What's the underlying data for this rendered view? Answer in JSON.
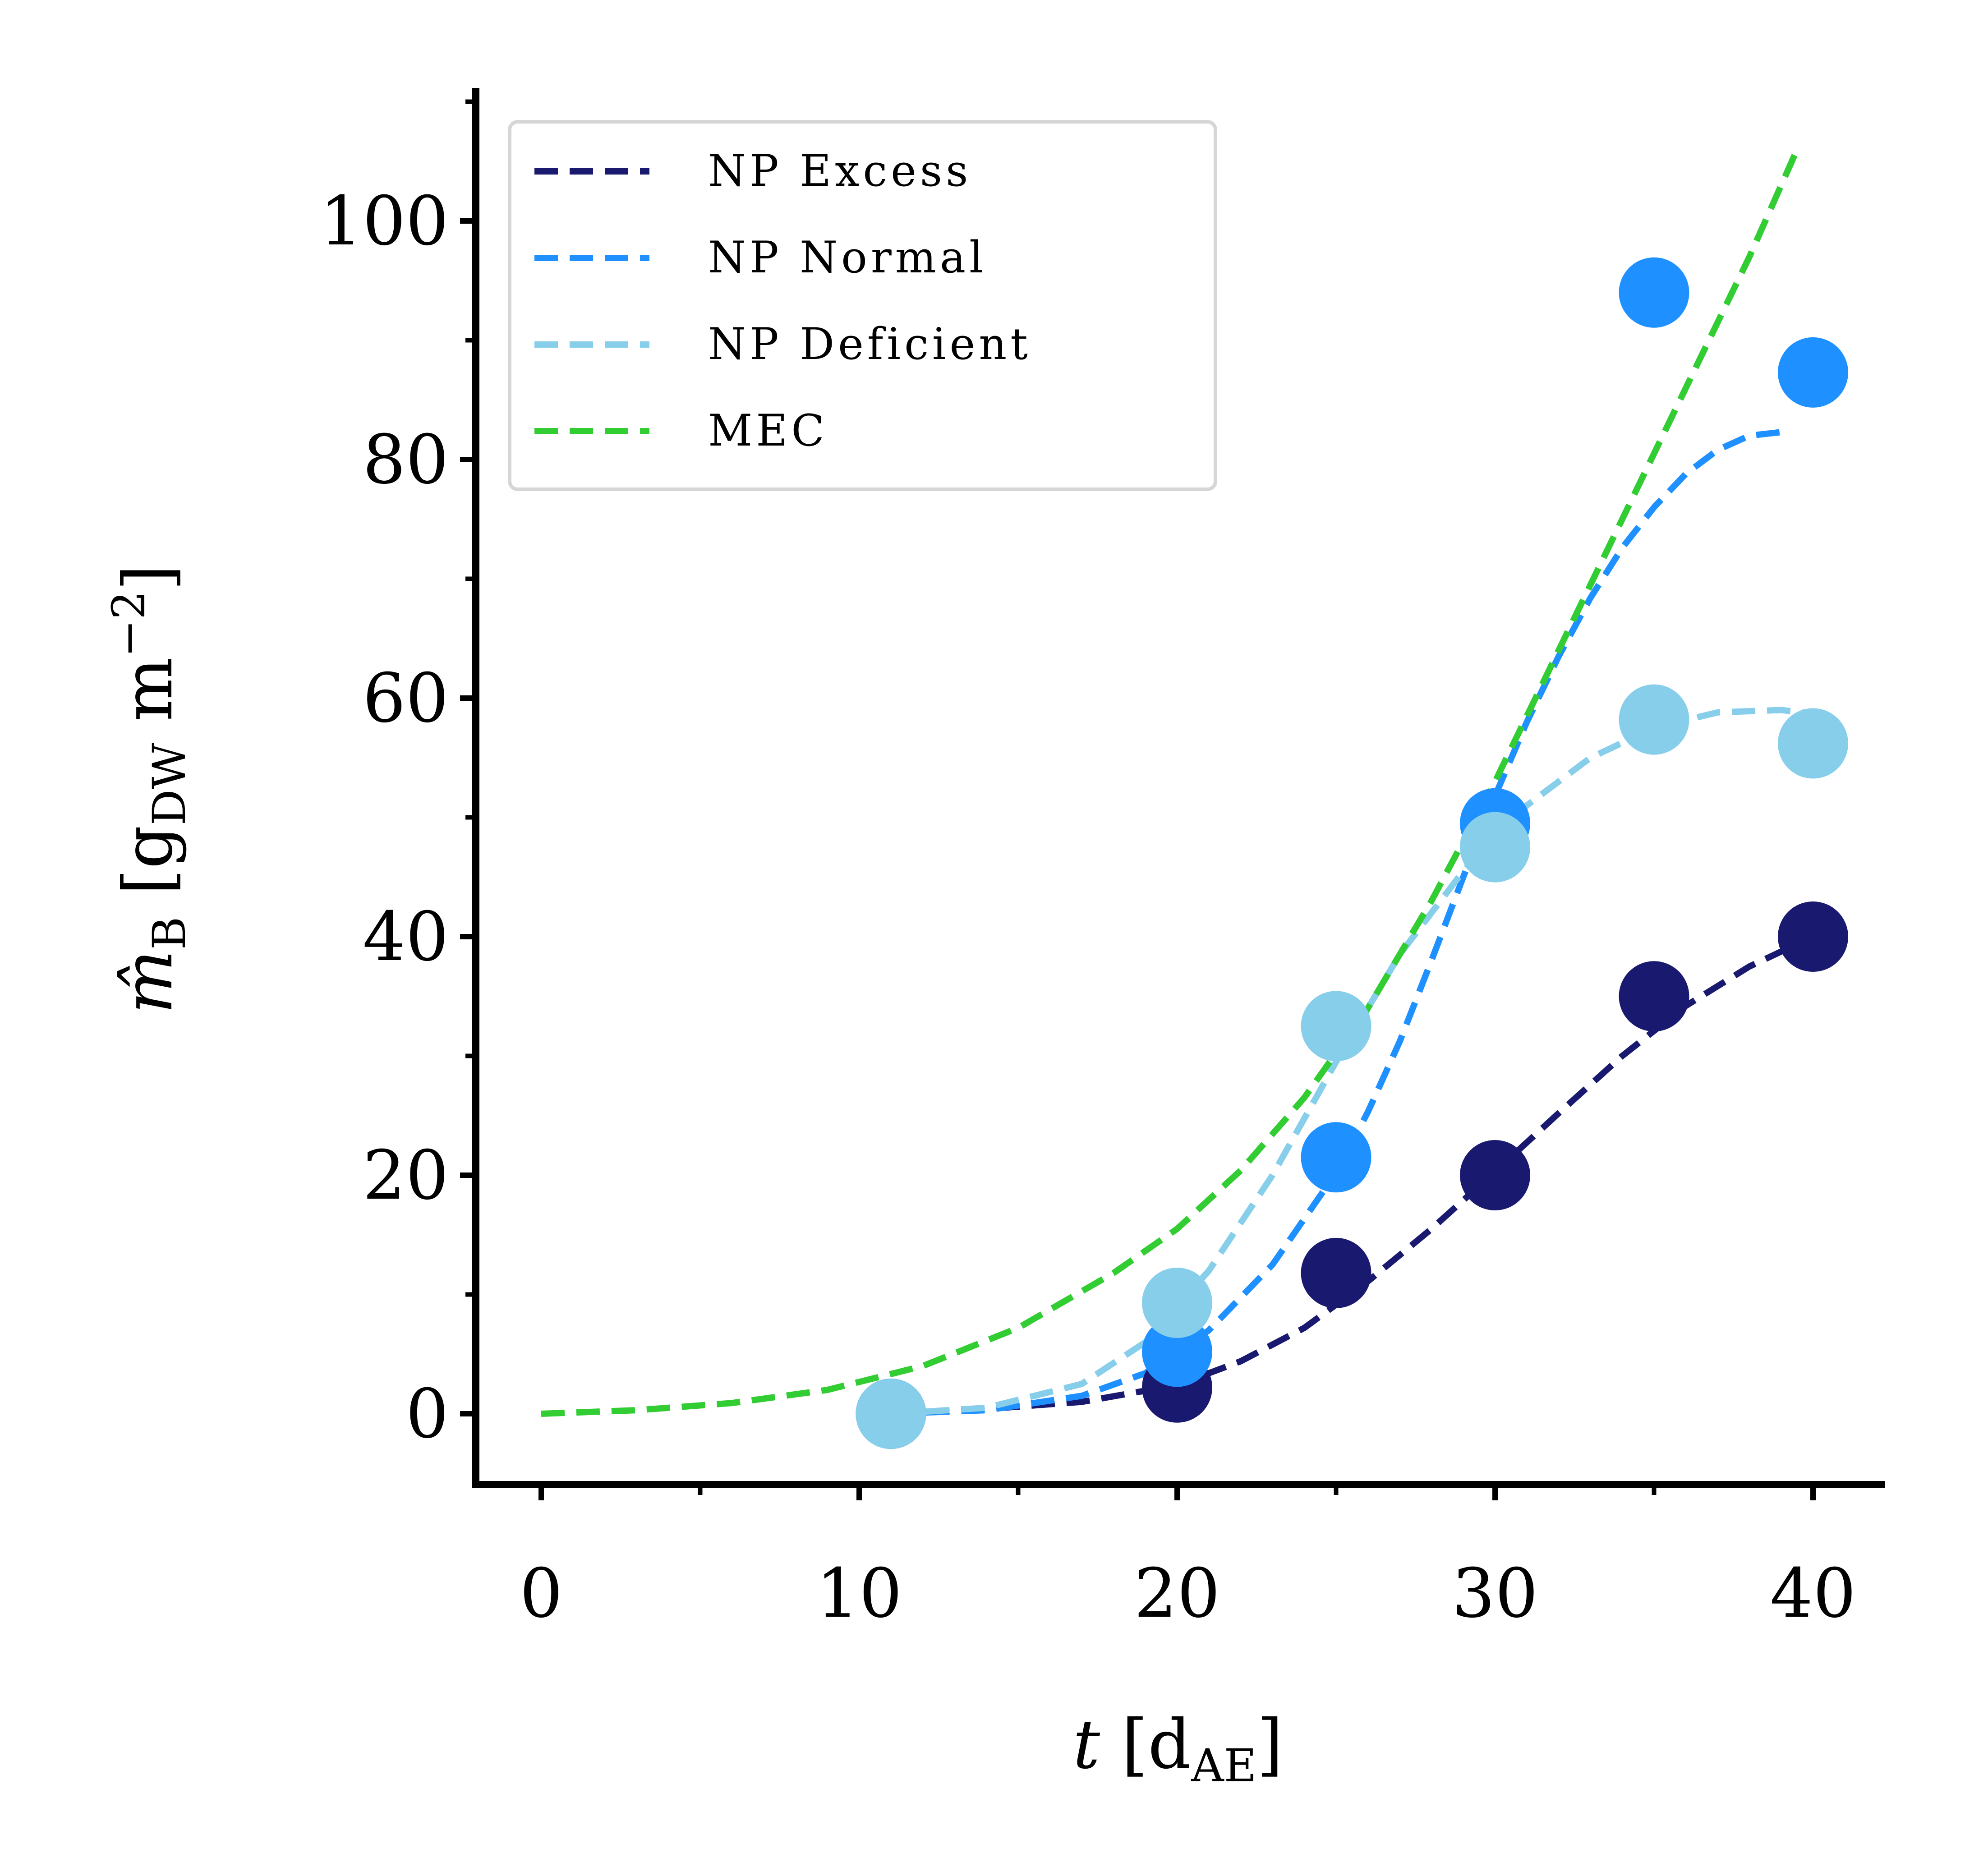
{
  "chart_data": {
    "type": "line",
    "xlabel": "t [dAE]",
    "xlabel_parts": {
      "var": "t",
      "open": " [d",
      "sub": "AE",
      "close": "]"
    },
    "ylabel": "m̂B [gDW m−2]",
    "ylabel_parts": {
      "var": "m̂",
      "sub1": "B",
      "open": " [g",
      "sub2": "DW",
      "mid": " m",
      "sup": "−2",
      "close": "]"
    },
    "xlim": [
      -2,
      42
    ],
    "ylim": [
      -5,
      111
    ],
    "x_ticks": [
      0,
      10,
      20,
      30,
      40
    ],
    "x_tick_labels": [
      "0",
      "10",
      "20",
      "30",
      "40"
    ],
    "y_ticks": [
      0,
      20,
      40,
      60,
      80,
      100
    ],
    "y_tick_labels": [
      "0",
      "20",
      "40",
      "60",
      "80",
      "100"
    ],
    "grid": false,
    "legend_position": "top-left",
    "series": [
      {
        "name": "NP Excess",
        "color": "#191970",
        "points": {
          "x": [
            11,
            20,
            25,
            30,
            35,
            40
          ],
          "y": [
            0,
            2.2,
            11.8,
            20,
            35,
            40
          ]
        },
        "fit": {
          "x": [
            11,
            14,
            17,
            20,
            22,
            24,
            26,
            28,
            30,
            32,
            34,
            36,
            38,
            40
          ],
          "y": [
            0,
            0.4,
            1.0,
            2.4,
            4.4,
            7.2,
            11.1,
            15.5,
            20.3,
            25.2,
            30.0,
            34.2,
            37.5,
            40.0
          ]
        }
      },
      {
        "name": "NP Normal",
        "color": "#1E90FF",
        "points": {
          "x": [
            11,
            20,
            25,
            30,
            35,
            40
          ],
          "y": [
            0,
            5.2,
            21.5,
            49.5,
            94,
            87.3
          ]
        },
        "fit": {
          "x": [
            11,
            14,
            17,
            19,
            21,
            23,
            25,
            26,
            27,
            28,
            29,
            30,
            31,
            32,
            33,
            34,
            35,
            36,
            37,
            38,
            39
          ],
          "y": [
            0,
            0.3,
            1.5,
            3.4,
            7.0,
            12.5,
            20.2,
            25.3,
            31.2,
            38.0,
            45.0,
            51.8,
            58.0,
            63.5,
            68.4,
            72.6,
            76.0,
            78.8,
            80.8,
            82.0,
            82.3
          ]
        }
      },
      {
        "name": "NP Deficient",
        "color": "#87CEEB",
        "points": {
          "x": [
            11,
            20,
            25,
            30,
            35,
            40
          ],
          "y": [
            0,
            9.3,
            32.5,
            47.5,
            58.2,
            56.2
          ]
        },
        "fit": {
          "x": [
            11,
            14,
            17,
            19,
            21,
            23,
            25,
            27,
            29,
            31,
            33,
            35,
            37,
            39,
            40
          ],
          "y": [
            0,
            0.5,
            2.5,
            6.0,
            12.0,
            20.0,
            29.5,
            38.5,
            45.5,
            51.0,
            55.0,
            57.5,
            58.8,
            59.0,
            58.7
          ]
        }
      },
      {
        "name": "MEC",
        "color": "#32CD32",
        "fit": {
          "x": [
            0,
            3,
            6,
            9,
            12,
            15,
            18,
            20,
            22,
            24,
            26,
            28,
            30,
            32,
            34,
            36,
            38,
            39.5
          ],
          "y": [
            0,
            0.3,
            0.9,
            2.0,
            4.0,
            7.2,
            11.8,
            15.5,
            20.4,
            26.5,
            34.0,
            43.0,
            53.0,
            64.0,
            75.0,
            86.0,
            97.0,
            106.0
          ]
        }
      }
    ]
  }
}
